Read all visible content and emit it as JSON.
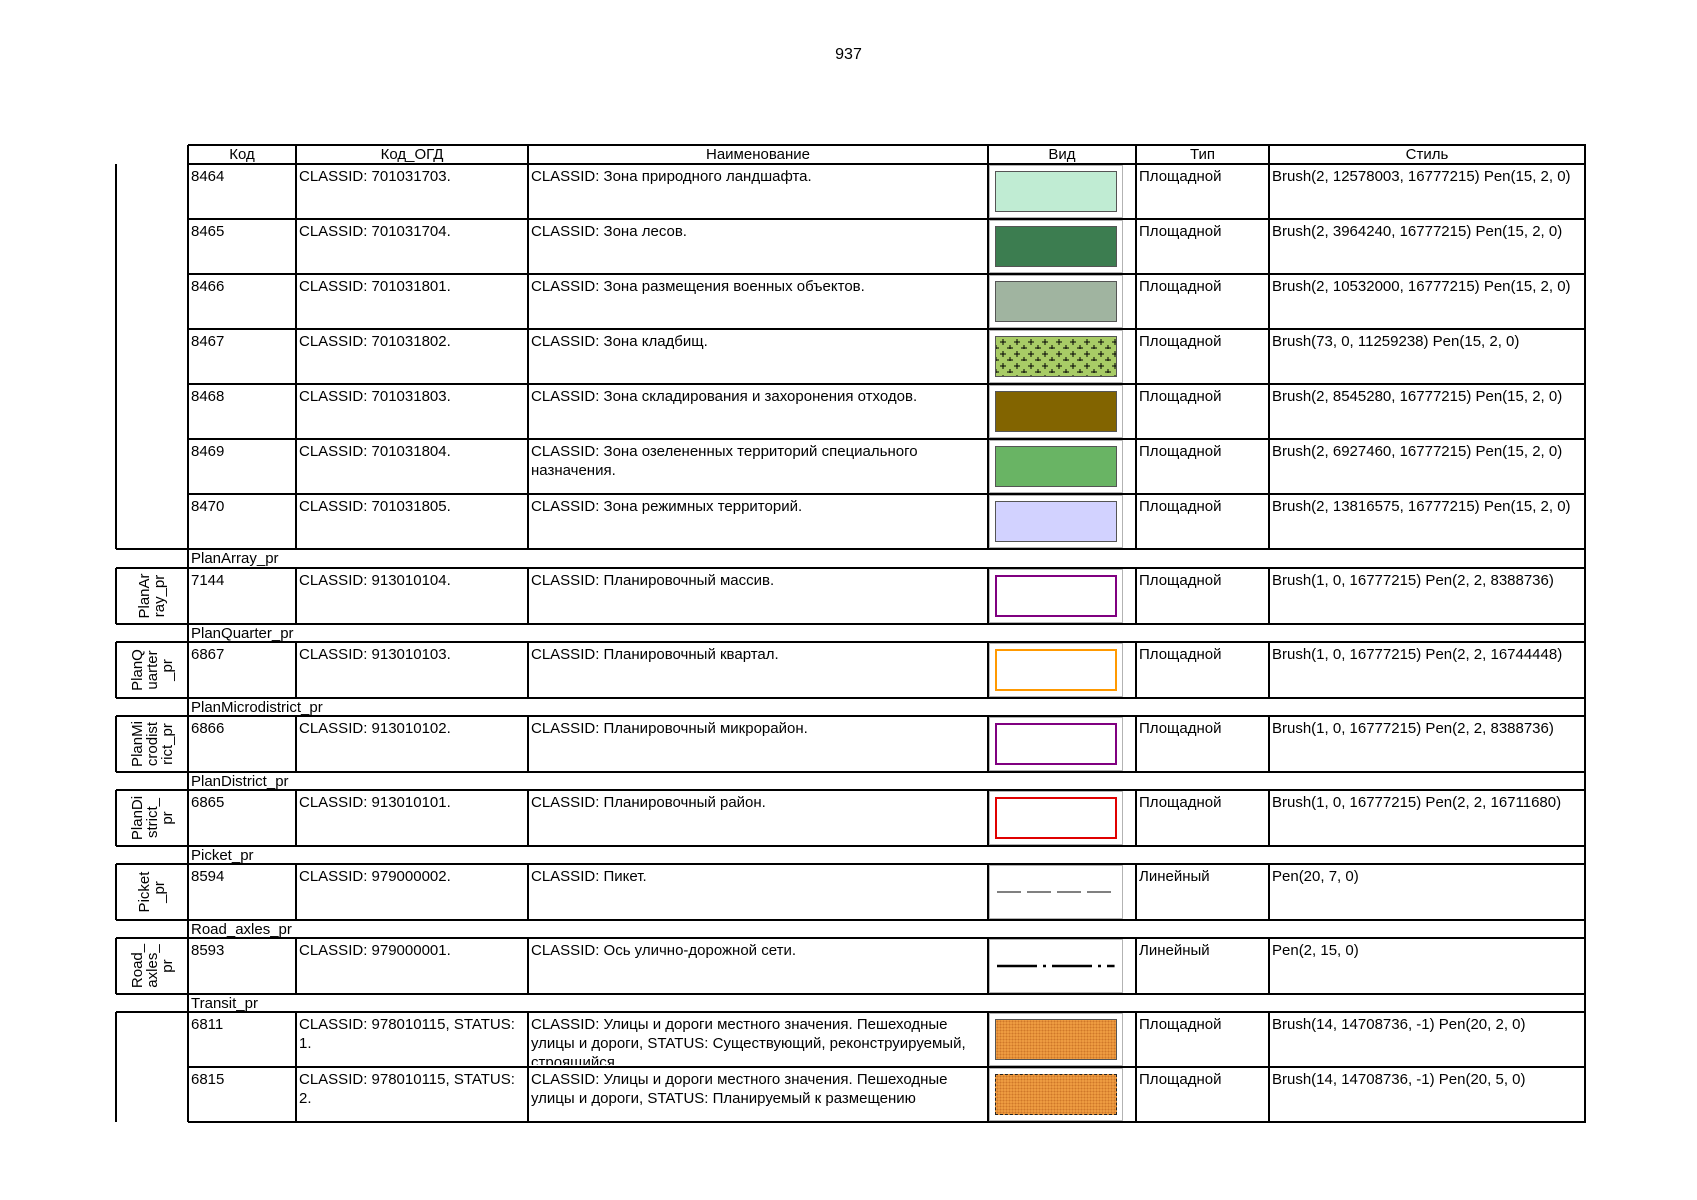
{
  "page_number": "937",
  "headers": {
    "code": "Код",
    "ogd_code": "Код_ОГД",
    "name": "Наименование",
    "view": "Вид",
    "type": "Тип",
    "style": "Стиль"
  },
  "rows": [
    {
      "code": "8464",
      "ogd": "CLASSID: 701031703.",
      "name": "CLASSID: Зона природного ландшафта.",
      "type": "Площадной",
      "style": "Brush(2, 12578003, 16777215) Pen(15, 2, 0)",
      "swatch": "solid",
      "fill": "#c0ecd3"
    },
    {
      "code": "8465",
      "ogd": "CLASSID: 701031704.",
      "name": "CLASSID: Зона лесов.",
      "type": "Площадной",
      "style": "Brush(2, 3964240, 16777215) Pen(15, 2, 0)",
      "swatch": "solid",
      "fill": "#3c7d50"
    },
    {
      "code": "8466",
      "ogd": "CLASSID: 701031801.",
      "name": "CLASSID: Зона размещения военных объектов.",
      "type": "Площадной",
      "style": "Brush(2, 10532000, 16777215) Pen(15, 2, 0)",
      "swatch": "solid",
      "fill": "#a0b4a0"
    },
    {
      "code": "8467",
      "ogd": "CLASSID: 701031802.",
      "name": "CLASSID: Зона кладбищ.",
      "type": "Площадной",
      "style": "Brush(73, 0, 11259238) Pen(15, 2, 0)",
      "swatch": "cross",
      "fill": "#a8cc66"
    },
    {
      "code": "8468",
      "ogd": "CLASSID: 701031803.",
      "name": "CLASSID: Зона складирования и захоронения отходов.",
      "type": "Площадной",
      "style": "Brush(2, 8545280, 16777215) Pen(15, 2, 0)",
      "swatch": "solid",
      "fill": "#826400"
    },
    {
      "code": "8469",
      "ogd": "CLASSID: 701031804.",
      "name": "CLASSID: Зона озелененных территорий специального назначения.",
      "type": "Площадной",
      "style": "Brush(2, 6927460, 16777215) Pen(15, 2, 0)",
      "swatch": "solid",
      "fill": "#69b464"
    },
    {
      "code": "8470",
      "ogd": "CLASSID: 701031805.",
      "name": "CLASSID: Зона режимных территорий.",
      "type": "Площадной",
      "style": "Brush(2, 13816575, 16777215) Pen(15, 2, 0)",
      "swatch": "solid",
      "fill": "#d2d2ff"
    },
    {
      "code": "7144",
      "ogd": "CLASSID: 913010104.",
      "name": "CLASSID: Планировочный массив.",
      "type": "Площадной",
      "style": "Brush(1, 0, 16777215) Pen(2, 2, 8388736)",
      "swatch": "outline",
      "stroke": "#800080"
    },
    {
      "code": "6867",
      "ogd": "CLASSID: 913010103.",
      "name": "CLASSID: Планировочный квартал.",
      "type": "Площадной",
      "style": "Brush(1, 0, 16777215) Pen(2, 2, 16744448)",
      "swatch": "outline",
      "stroke": "#ff9900"
    },
    {
      "code": "6866",
      "ogd": "CLASSID: 913010102.",
      "name": "CLASSID: Планировочный микрорайон.",
      "type": "Площадной",
      "style": "Brush(1, 0, 16777215) Pen(2, 2, 8388736)",
      "swatch": "outline",
      "stroke": "#800080"
    },
    {
      "code": "6865",
      "ogd": "CLASSID: 913010101.",
      "name": "CLASSID: Планировочный район.",
      "type": "Площадной",
      "style": "Brush(1, 0, 16777215) Pen(2, 2, 16711680)",
      "swatch": "outline",
      "stroke": "#e00000"
    },
    {
      "code": "8594",
      "ogd": "CLASSID: 979000002.",
      "name": "CLASSID: Пикет.",
      "type": "Линейный",
      "style": "Pen(20, 7, 0)",
      "swatch": "dashline"
    },
    {
      "code": "8593",
      "ogd": "CLASSID: 979000001.",
      "name": "CLASSID: Ось улично-дорожной сети.",
      "type": "Линейный",
      "style": "Pen(2, 15, 0)",
      "swatch": "dashdot"
    },
    {
      "code": "6811",
      "ogd": "CLASSID: 978010115, STATUS: 1.",
      "name": "CLASSID: Улицы и дороги местного значения. Пешеходные улицы и дороги, STATUS: Существующий, реконструируемый, строящийся",
      "type": "Площадной",
      "style": "Brush(14, 14708736, -1) Pen(20, 2, 0)",
      "swatch": "dots",
      "fill": "#f09e43"
    },
    {
      "code": "6815",
      "ogd": "CLASSID: 978010115, STATUS: 2.",
      "name": "CLASSID: Улицы и дороги местного значения. Пешеходные улицы и дороги, STATUS: Планируемый к размещению",
      "type": "Площадной",
      "style": "Brush(14, 14708736, -1) Pen(20, 5, 0)",
      "swatch": "dotsdash",
      "fill": "#f09e43"
    }
  ],
  "groups": [
    {
      "title": "PlanArray_pr",
      "side": "PlanAr\nray_pr"
    },
    {
      "title": "PlanQuarter_pr",
      "side": "PlanQ\nuarter\n_pr"
    },
    {
      "title": "PlanMicrodistrict_pr",
      "side": "PlanMi\ncrodist\nrict_pr"
    },
    {
      "title": "PlanDistrict_pr",
      "side": "PlanDi\nstrict_\npr"
    },
    {
      "title": "Picket_pr",
      "side": "Picket\n_pr"
    },
    {
      "title": "Road_axles_pr",
      "side": "Road_\naxles_\npr"
    },
    {
      "title": "Transit_pr",
      "side": ""
    }
  ]
}
